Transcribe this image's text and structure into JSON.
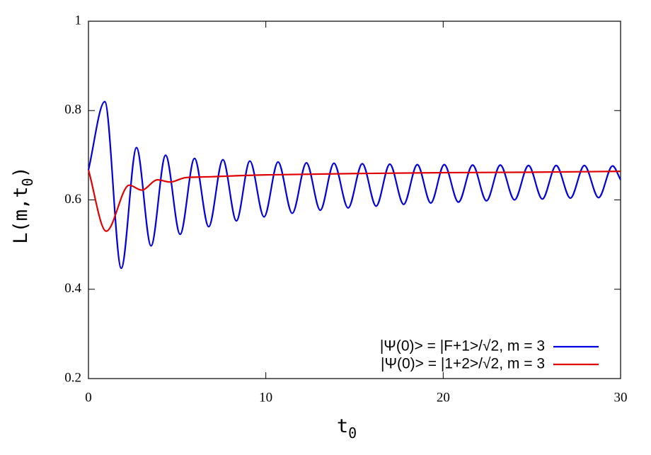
{
  "chart_data": {
    "type": "line",
    "xlabel": {
      "text": "t",
      "subscript": "0"
    },
    "ylabel": {
      "before": "L(m,t",
      "subscript": "0",
      "after": ")"
    },
    "xlim": [
      0,
      30
    ],
    "xticks": [
      0,
      10,
      20,
      30
    ],
    "ylim": [
      0.2,
      1
    ],
    "yticks": [
      0.2,
      0.4,
      0.6,
      0.8,
      1
    ],
    "legend": "bottom right",
    "series": [
      {
        "name": "|Ψ(0)> = |F+1>/√2, m = 3",
        "color": "#0000e0",
        "x": [
          0,
          0.92,
          1.85,
          2.71,
          3.53,
          4.35,
          5.17,
          5.98,
          6.78,
          7.58,
          8.34,
          9.1,
          9.9,
          10.69,
          11.49,
          12.29,
          13.07,
          13.84,
          14.64,
          15.44,
          16.22,
          16.99,
          17.77,
          18.54,
          19.3,
          20.06,
          20.86,
          21.66,
          22.44,
          23.22,
          24.02,
          24.81,
          25.59,
          26.37,
          27.17,
          27.96,
          28.76,
          29.55,
          30
        ],
        "values": [
          0.667,
          0.82,
          0.447,
          0.717,
          0.497,
          0.7,
          0.523,
          0.693,
          0.54,
          0.69,
          0.553,
          0.687,
          0.562,
          0.685,
          0.57,
          0.683,
          0.577,
          0.682,
          0.582,
          0.681,
          0.586,
          0.68,
          0.59,
          0.679,
          0.593,
          0.679,
          0.595,
          0.678,
          0.598,
          0.678,
          0.6,
          0.677,
          0.602,
          0.677,
          0.604,
          0.677,
          0.605,
          0.676,
          0.645
        ]
      },
      {
        "name": "|Ψ(0)> = |1+2>/√2, m = 3",
        "color": "#e00000",
        "x": [
          0,
          1.0,
          2.3,
          3.0,
          3.9,
          4.6,
          5.5,
          7,
          10,
          15,
          20,
          25,
          30
        ],
        "values": [
          0.667,
          0.53,
          0.633,
          0.622,
          0.645,
          0.64,
          0.65,
          0.652,
          0.656,
          0.659,
          0.661,
          0.662,
          0.664
        ]
      }
    ]
  }
}
